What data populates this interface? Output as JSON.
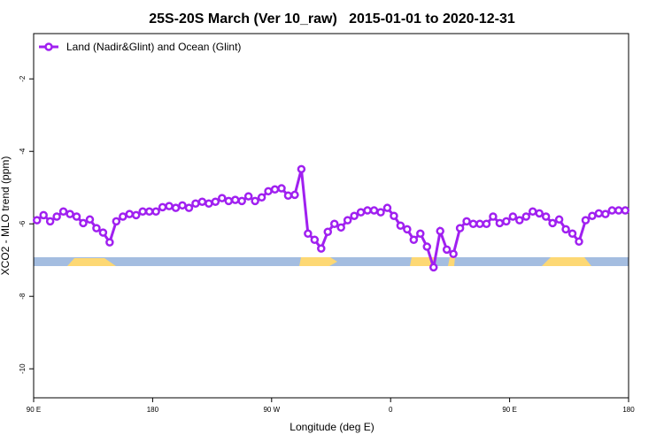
{
  "chart_data": {
    "type": "line",
    "title": "25S-20S March (Ver 10_raw)   2015-01-01 to 2020-12-31",
    "x_label": "Longitude (deg E)",
    "y_label": "XCO2 - MLO trend (ppm)",
    "xlim": [
      90,
      540
    ],
    "xticks": [
      {
        "value": 90,
        "label": "90 E"
      },
      {
        "value": 180,
        "label": "180"
      },
      {
        "value": 270,
        "label": "90 W"
      },
      {
        "value": 360,
        "label": "0"
      },
      {
        "value": 450,
        "label": "90 E"
      },
      {
        "value": 540,
        "label": "180"
      }
    ],
    "ylim": [
      -10.8,
      -0.75
    ],
    "yticks": [
      -2,
      -4,
      -6,
      -8,
      -10
    ],
    "legend": "top-left",
    "x": [
      92.5,
      97.5,
      102.5,
      107.5,
      112.5,
      117.5,
      122.5,
      127.5,
      132.5,
      137.5,
      142.5,
      147.5,
      152.5,
      157.5,
      162.5,
      167.5,
      172.5,
      177.5,
      182.5,
      187.5,
      192.5,
      197.5,
      202.5,
      207.5,
      212.5,
      217.5,
      222.5,
      227.5,
      232.5,
      237.5,
      242.5,
      247.5,
      252.5,
      257.5,
      262.5,
      267.5,
      272.5,
      277.5,
      282.5,
      287.5,
      292.5,
      297.5,
      302.5,
      307.5,
      312.5,
      317.5,
      322.5,
      327.5,
      332.5,
      337.5,
      342.5,
      347.5,
      352.5,
      357.5,
      362.5,
      367.5,
      372.5,
      377.5,
      382.5,
      387.5,
      392.5,
      397.5,
      402.5,
      407.5,
      412.5,
      417.5,
      422.5,
      427.5,
      432.5,
      437.5,
      442.5,
      447.5,
      452.5,
      457.5,
      462.5,
      467.5,
      472.5,
      477.5,
      482.5,
      487.5,
      492.5,
      497.5,
      502.5,
      507.5,
      512.5,
      517.5,
      522.5,
      527.5,
      532.5,
      537.5
    ],
    "series": [
      {
        "name": "Land (Nadir&Glint) and Ocean (Glint)",
        "color": "#a020f0",
        "values": [
          -5.9,
          -5.76,
          -5.93,
          -5.8,
          -5.66,
          -5.73,
          -5.8,
          -5.98,
          -5.88,
          -6.12,
          -6.24,
          -6.51,
          -5.93,
          -5.8,
          -5.73,
          -5.76,
          -5.66,
          -5.66,
          -5.66,
          -5.54,
          -5.51,
          -5.56,
          -5.49,
          -5.56,
          -5.44,
          -5.39,
          -5.44,
          -5.39,
          -5.29,
          -5.37,
          -5.34,
          -5.37,
          -5.24,
          -5.37,
          -5.27,
          -5.1,
          -5.05,
          -5.02,
          -5.22,
          -5.2,
          -4.49,
          -6.27,
          -6.44,
          -6.68,
          -6.22,
          -6.0,
          -6.1,
          -5.9,
          -5.78,
          -5.68,
          -5.63,
          -5.63,
          -5.68,
          -5.56,
          -5.78,
          -6.05,
          -6.15,
          -6.44,
          -6.27,
          -6.63,
          -7.2,
          -6.2,
          -6.71,
          -6.83,
          -6.12,
          -5.93,
          -6.0,
          -6.0,
          -6.0,
          -5.8,
          -5.98,
          -5.93,
          -5.8,
          -5.9,
          -5.8,
          -5.66,
          -5.71,
          -5.8,
          -5.98,
          -5.88,
          -6.15,
          -6.27,
          -6.49,
          -5.9,
          -5.78,
          -5.71,
          -5.73,
          -5.63,
          -5.63,
          -5.63
        ]
      }
    ]
  }
}
